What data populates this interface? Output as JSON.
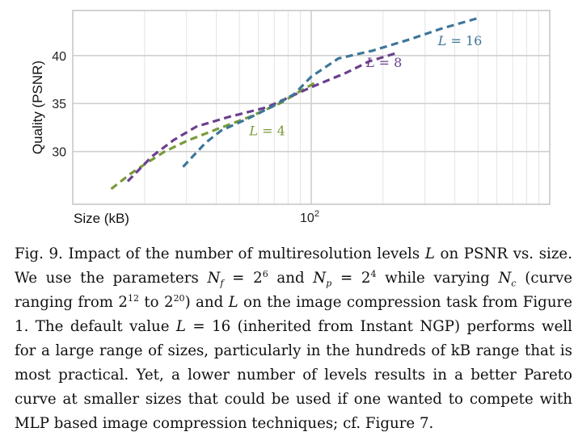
{
  "colors": {
    "L4": "#7a9a3a",
    "L8": "#6b3f8e",
    "L16": "#3d7699",
    "grid_major": "#cfcfcf",
    "grid_minor": "#e4e4e4",
    "frame": "#c8c8c8"
  },
  "chart_data": {
    "type": "line",
    "xscale": "log",
    "xlabel": "Size (kB)",
    "ylabel": "Quality (PSNR)",
    "xlim": [
      10,
      1000
    ],
    "ylim": [
      24.5,
      44.7
    ],
    "xticks": [
      {
        "value": 100,
        "base": "10",
        "exp": "2"
      }
    ],
    "yticks": [
      30,
      35,
      40
    ],
    "grid": true,
    "series": [
      {
        "name": "L = 4",
        "label_text": "L = 4",
        "color_key": "L4",
        "points": [
          [
            14.5,
            26.1
          ],
          [
            17.5,
            27.7
          ],
          [
            21.0,
            29.0
          ],
          [
            24.3,
            30.0
          ],
          [
            30.0,
            31.1
          ],
          [
            40.0,
            32.3
          ],
          [
            55.0,
            33.6
          ],
          [
            75.0,
            35.1
          ],
          [
            90.0,
            36.3
          ],
          [
            106.0,
            37.3
          ]
        ]
      },
      {
        "name": "L = 8",
        "label_text": "L = 8",
        "color_key": "L8",
        "points": [
          [
            17.0,
            26.9
          ],
          [
            21.5,
            29.5
          ],
          [
            26.5,
            31.2
          ],
          [
            33.0,
            32.6
          ],
          [
            45.0,
            33.6
          ],
          [
            65.0,
            34.6
          ],
          [
            100.0,
            36.7
          ],
          [
            140.0,
            38.2
          ],
          [
            175.0,
            39.4
          ],
          [
            230.0,
            40.3
          ]
        ]
      },
      {
        "name": "L = 16",
        "label_text": "L = 16",
        "color_key": "L16",
        "points": [
          [
            29.0,
            28.4
          ],
          [
            36.0,
            30.9
          ],
          [
            42.0,
            32.2
          ],
          [
            55.0,
            33.5
          ],
          [
            70.0,
            34.8
          ],
          [
            85.0,
            36.0
          ],
          [
            100.0,
            37.8
          ],
          [
            130.0,
            39.7
          ],
          [
            180.0,
            40.5
          ],
          [
            260.0,
            41.7
          ],
          [
            350.0,
            42.8
          ],
          [
            500.0,
            43.9
          ]
        ]
      }
    ],
    "series_labels": [
      {
        "series": 0,
        "x": 55.0,
        "y": 31.7,
        "anchor": "start"
      },
      {
        "series": 1,
        "x": 170.0,
        "y": 38.8,
        "anchor": "start"
      },
      {
        "series": 2,
        "x": 340.0,
        "y": 41.1,
        "anchor": "start"
      }
    ]
  },
  "caption": {
    "label": "Fig. 9.",
    "segments": [
      {
        "t": "Impact of the number of multiresolution levels "
      },
      {
        "t": "L",
        "i": true
      },
      {
        "t": " on PSNR vs. size. We use the parameters "
      },
      {
        "t": "N",
        "i": true
      },
      {
        "t": "f",
        "sub": true,
        "i": true
      },
      {
        "t": " = 2"
      },
      {
        "t": "6",
        "sup": true
      },
      {
        "t": " and "
      },
      {
        "t": "N",
        "i": true
      },
      {
        "t": "p",
        "sub": true,
        "i": true
      },
      {
        "t": " = 2"
      },
      {
        "t": "4",
        "sup": true
      },
      {
        "t": " while varying "
      },
      {
        "t": "N",
        "i": true
      },
      {
        "t": "c",
        "sub": true,
        "i": true
      },
      {
        "t": " (curve ranging from 2"
      },
      {
        "t": "12",
        "sup": true
      },
      {
        "t": " to 2"
      },
      {
        "t": "20",
        "sup": true
      },
      {
        "t": ") and "
      },
      {
        "t": "L",
        "i": true
      },
      {
        "t": " on the image compression task from Figure 1. The default value "
      },
      {
        "t": "L",
        "i": true
      },
      {
        "t": " = 16 (inherited from Instant NGP) performs well for a large range of sizes, particularly in the hundreds of kB range that is most practical. Yet, a lower number of levels results in a better Pareto curve at smaller sizes that could be used if one wanted to compete with MLP based image compression techniques; cf. Figure 7."
      }
    ]
  }
}
